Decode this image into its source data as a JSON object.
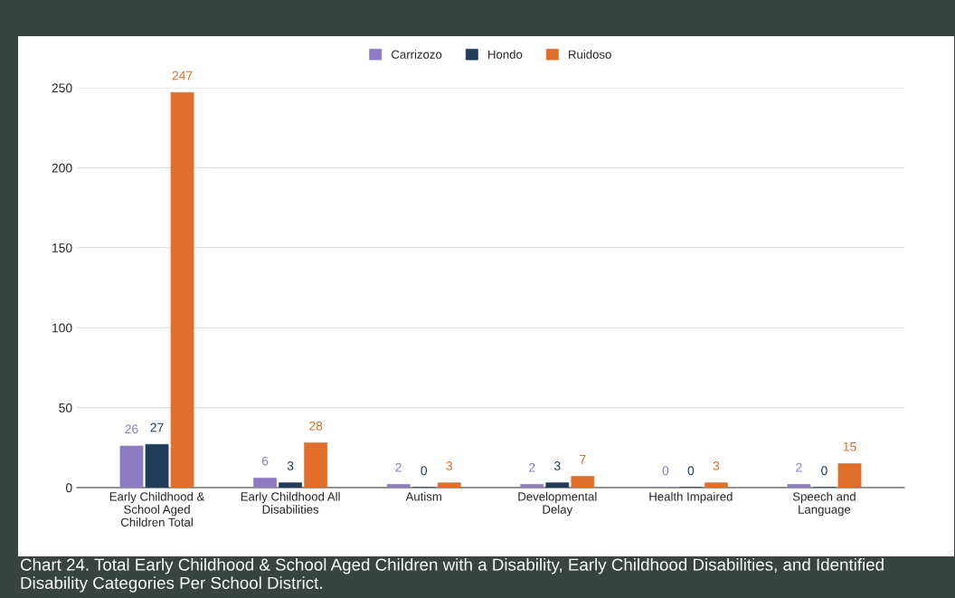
{
  "chart_data": {
    "type": "bar",
    "categories": [
      "Early Childhood &\nSchool Aged\nChildren Total",
      "Early Childhood All\nDisabilities",
      "Autism",
      "Developmental\nDelay",
      "Health Impaired",
      "Speech and\nLanguage"
    ],
    "series": [
      {
        "name": "Carrizozo",
        "color": "#8e7cc3",
        "values": [
          26,
          6,
          2,
          2,
          0,
          2
        ]
      },
      {
        "name": "Hondo",
        "color": "#1f3c5a",
        "values": [
          27,
          3,
          0,
          3,
          0,
          0
        ]
      },
      {
        "name": "Ruidoso",
        "color": "#e06f2c",
        "values": [
          247,
          28,
          3,
          7,
          3,
          15
        ]
      }
    ],
    "ylim": [
      0,
      250
    ],
    "yticks": [
      0,
      50,
      100,
      150,
      200,
      250
    ],
    "grid": "y",
    "legend": "top",
    "data_labels": true,
    "annotations": [
      "Chart 24. Total Early Childhood & School Aged Children with a Disability, Early Childhood Disabilities, and Identified Disability Categories Per School District."
    ]
  }
}
